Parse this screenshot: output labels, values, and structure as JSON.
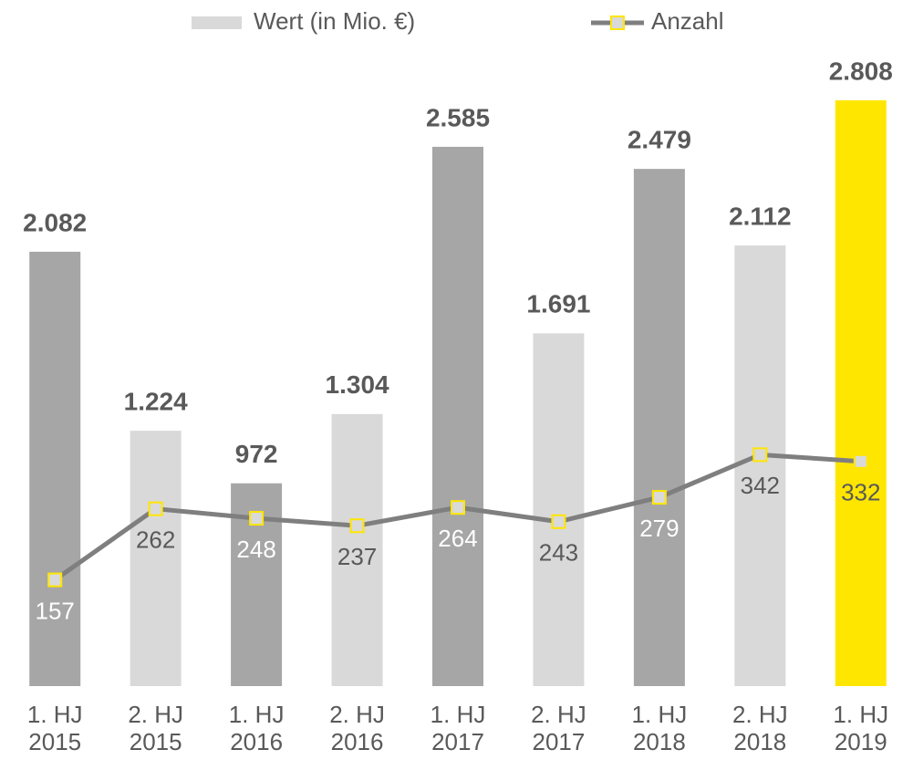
{
  "chart_data": {
    "type": "bar_line",
    "categories": [
      "1. HJ 2015",
      "2. HJ 2015",
      "1. HJ 2016",
      "2. HJ 2016",
      "1. HJ 2017",
      "2. HJ 2017",
      "1. HJ 2018",
      "2. HJ 2018",
      "1. HJ 2019"
    ],
    "series": [
      {
        "name": "Wert (in Mio. €)",
        "type": "bar",
        "color": "#d9d9d9",
        "colors": [
          "#a6a6a6",
          "#d9d9d9",
          "#a6a6a6",
          "#d9d9d9",
          "#a6a6a6",
          "#d9d9d9",
          "#a6a6a6",
          "#d9d9d9",
          "#ffe600"
        ],
        "values": [
          2082,
          1224,
          972,
          1304,
          2585,
          1691,
          2479,
          2112,
          2808
        ],
        "value_labels": [
          "2.082",
          "1.224",
          "972",
          "1.304",
          "2.585",
          "1.691",
          "2.479",
          "2.112",
          "2.808"
        ]
      },
      {
        "name": "Anzahl",
        "type": "line",
        "axis": "y2",
        "color": "#7f7f7f",
        "marker_color": "#ffe600",
        "label_colors": [
          "#ffffff",
          "#595959",
          "#ffffff",
          "#595959",
          "#ffffff",
          "#595959",
          "#ffffff",
          "#595959",
          "#595959"
        ],
        "values": [
          157,
          262,
          248,
          237,
          264,
          243,
          279,
          342,
          332
        ]
      }
    ],
    "ylim": [
      0,
      3000
    ],
    "y2lim": [
      0,
      925
    ],
    "legend": "top"
  }
}
